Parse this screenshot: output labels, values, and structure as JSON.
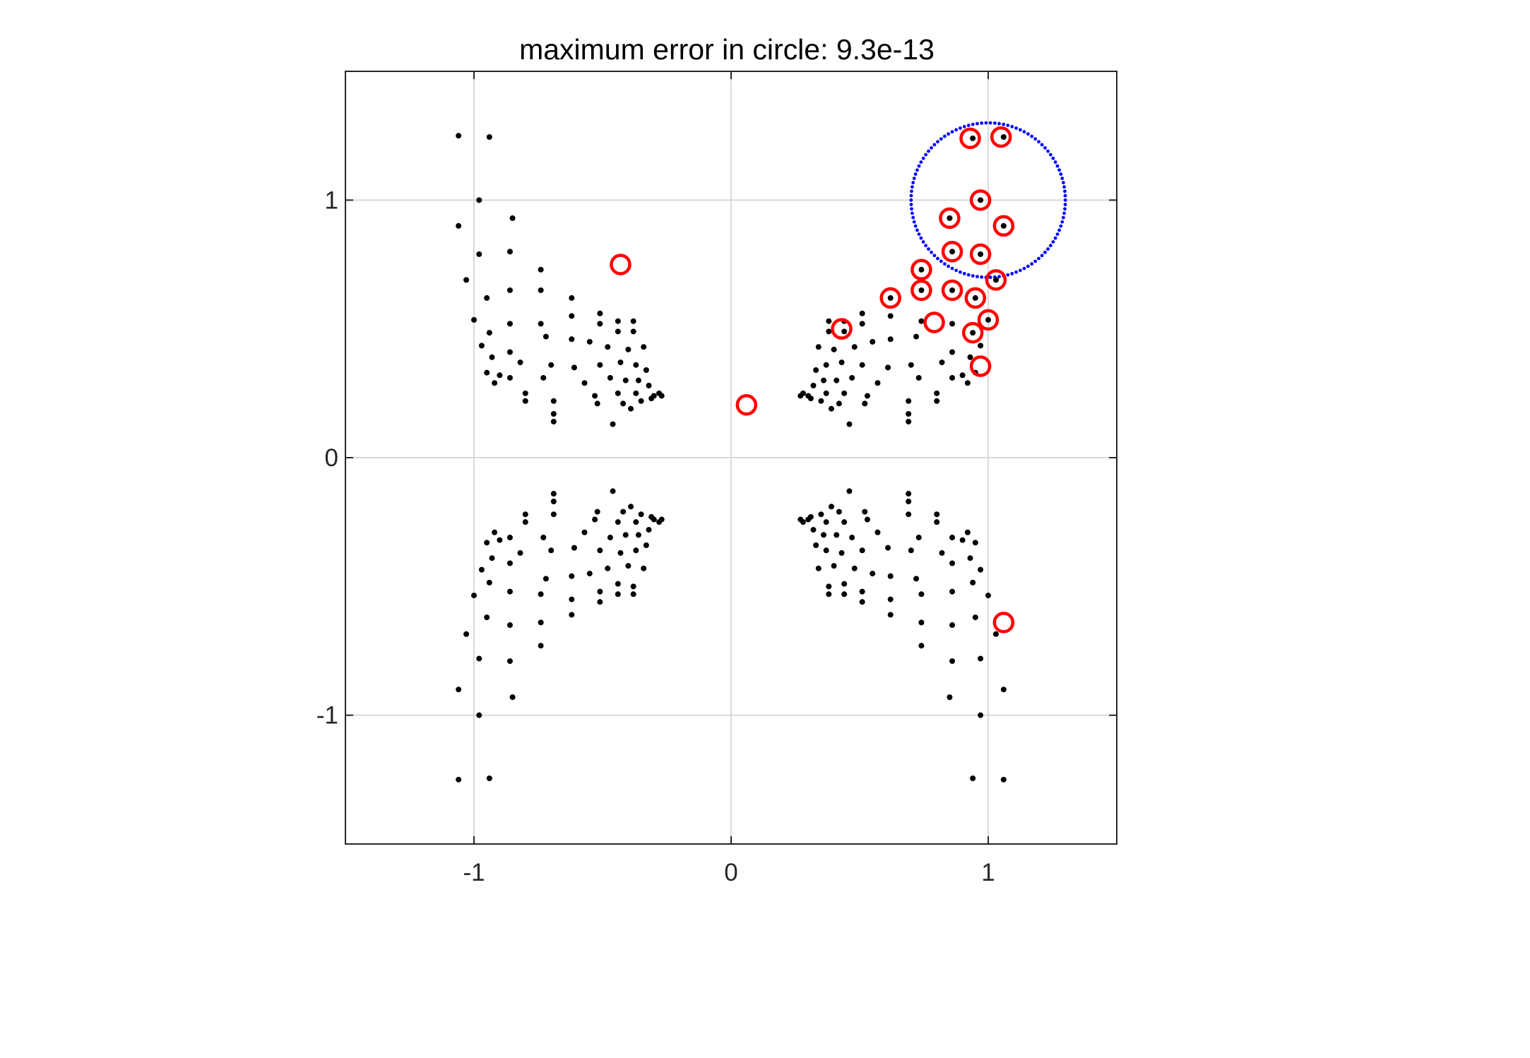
{
  "chart_data": {
    "type": "scatter",
    "title": "maximum error in circle: 9.3e-13",
    "xlabel": "",
    "ylabel": "",
    "xlim": [
      -1.5,
      1.5
    ],
    "ylim": [
      -1.5,
      1.5
    ],
    "grid": true,
    "legend": "none",
    "x_ticks": [
      {
        "value": -1,
        "label": "-1"
      },
      {
        "value": 0,
        "label": "0"
      },
      {
        "value": 1,
        "label": "1"
      }
    ],
    "y_ticks": [
      {
        "value": 1,
        "label": "1"
      },
      {
        "value": 0,
        "label": "0"
      },
      {
        "value": -1,
        "label": "-1"
      }
    ],
    "colors": {
      "points": "#000000",
      "highlighted": "#ff0000",
      "circle": "#0000ff",
      "grid": "#d9d9d9",
      "axes": "#262626"
    },
    "circle": {
      "center": [
        1.0,
        1.0
      ],
      "radius": 0.3
    },
    "highlighted_points": [
      [
        0.93,
        1.24
      ],
      [
        1.05,
        1.245
      ],
      [
        0.97,
        1.0
      ],
      [
        0.85,
        0.93
      ],
      [
        1.06,
        0.9
      ],
      [
        0.86,
        0.8
      ],
      [
        0.97,
        0.79
      ],
      [
        0.74,
        0.73
      ],
      [
        1.03,
        0.69
      ],
      [
        0.74,
        0.65
      ],
      [
        0.86,
        0.65
      ],
      [
        0.95,
        0.62
      ],
      [
        0.62,
        0.62
      ],
      [
        0.79,
        0.525
      ],
      [
        1.0,
        0.535
      ],
      [
        0.94,
        0.485
      ],
      [
        0.43,
        0.5
      ],
      [
        0.97,
        0.355
      ],
      [
        -0.43,
        0.75
      ],
      [
        0.06,
        0.205
      ],
      [
        1.06,
        -0.64
      ]
    ],
    "points_upper_left": [
      [
        -1.06,
        1.25
      ],
      [
        -0.94,
        1.245
      ],
      [
        -0.98,
        1.0
      ],
      [
        -1.06,
        0.9
      ],
      [
        -0.85,
        0.93
      ],
      [
        -0.98,
        0.79
      ],
      [
        -0.86,
        0.8
      ],
      [
        -1.03,
        0.69
      ],
      [
        -0.74,
        0.73
      ],
      [
        -0.86,
        0.65
      ],
      [
        -0.74,
        0.65
      ],
      [
        -0.95,
        0.62
      ],
      [
        -0.62,
        0.62
      ],
      [
        -1.0,
        0.535
      ],
      [
        -0.86,
        0.52
      ],
      [
        -0.74,
        0.52
      ],
      [
        -0.62,
        0.55
      ],
      [
        -0.51,
        0.56
      ],
      [
        -0.44,
        0.53
      ],
      [
        -0.38,
        0.53
      ],
      [
        -0.94,
        0.485
      ],
      [
        -0.72,
        0.47
      ],
      [
        -0.51,
        0.52
      ],
      [
        -0.44,
        0.49
      ],
      [
        -0.38,
        0.49
      ],
      [
        -0.97,
        0.435
      ],
      [
        -0.86,
        0.41
      ],
      [
        -0.62,
        0.46
      ],
      [
        -0.55,
        0.45
      ],
      [
        -0.48,
        0.43
      ],
      [
        -0.4,
        0.42
      ],
      [
        -0.34,
        0.43
      ],
      [
        -0.93,
        0.39
      ],
      [
        -0.82,
        0.37
      ],
      [
        -0.7,
        0.36
      ],
      [
        -0.61,
        0.35
      ],
      [
        -0.51,
        0.36
      ],
      [
        -0.43,
        0.37
      ],
      [
        -0.37,
        0.36
      ],
      [
        -0.33,
        0.34
      ],
      [
        -0.95,
        0.33
      ],
      [
        -0.9,
        0.32
      ],
      [
        -0.86,
        0.31
      ],
      [
        -0.73,
        0.31
      ],
      [
        -0.57,
        0.29
      ],
      [
        -0.47,
        0.31
      ],
      [
        -0.41,
        0.3
      ],
      [
        -0.36,
        0.3
      ],
      [
        -0.32,
        0.28
      ],
      [
        -0.92,
        0.29
      ],
      [
        -0.8,
        0.25
      ],
      [
        -0.69,
        0.22
      ],
      [
        -0.53,
        0.24
      ],
      [
        -0.44,
        0.25
      ],
      [
        -0.37,
        0.25
      ],
      [
        -0.3,
        0.24
      ],
      [
        -0.27,
        0.24
      ],
      [
        -0.8,
        0.22
      ],
      [
        -0.69,
        0.17
      ],
      [
        -0.52,
        0.21
      ],
      [
        -0.42,
        0.21
      ],
      [
        -0.35,
        0.22
      ],
      [
        -0.31,
        0.23
      ],
      [
        -0.69,
        0.14
      ],
      [
        -0.46,
        0.13
      ],
      [
        -0.39,
        0.19
      ],
      [
        -0.28,
        0.25
      ]
    ],
    "points_upper_right": [
      [
        0.94,
        1.24
      ],
      [
        1.06,
        1.245
      ],
      [
        0.97,
        1.0
      ],
      [
        0.85,
        0.93
      ],
      [
        1.06,
        0.9
      ],
      [
        0.86,
        0.8
      ],
      [
        0.97,
        0.79
      ],
      [
        0.74,
        0.73
      ],
      [
        1.03,
        0.69
      ],
      [
        0.74,
        0.65
      ],
      [
        0.86,
        0.65
      ],
      [
        0.95,
        0.62
      ],
      [
        0.62,
        0.62
      ],
      [
        0.62,
        0.55
      ],
      [
        0.51,
        0.56
      ],
      [
        0.44,
        0.53
      ],
      [
        0.38,
        0.53
      ],
      [
        0.74,
        0.53
      ],
      [
        0.86,
        0.52
      ],
      [
        1.0,
        0.535
      ],
      [
        0.94,
        0.485
      ],
      [
        0.72,
        0.47
      ],
      [
        0.51,
        0.52
      ],
      [
        0.44,
        0.49
      ],
      [
        0.38,
        0.49
      ],
      [
        0.97,
        0.435
      ],
      [
        0.86,
        0.41
      ],
      [
        0.62,
        0.46
      ],
      [
        0.55,
        0.45
      ],
      [
        0.48,
        0.43
      ],
      [
        0.4,
        0.42
      ],
      [
        0.34,
        0.43
      ],
      [
        0.93,
        0.39
      ],
      [
        0.82,
        0.37
      ],
      [
        0.7,
        0.36
      ],
      [
        0.61,
        0.35
      ],
      [
        0.51,
        0.36
      ],
      [
        0.43,
        0.37
      ],
      [
        0.37,
        0.36
      ],
      [
        0.33,
        0.34
      ],
      [
        0.95,
        0.33
      ],
      [
        0.9,
        0.32
      ],
      [
        0.86,
        0.31
      ],
      [
        0.73,
        0.31
      ],
      [
        0.57,
        0.29
      ],
      [
        0.47,
        0.31
      ],
      [
        0.41,
        0.3
      ],
      [
        0.36,
        0.3
      ],
      [
        0.32,
        0.28
      ],
      [
        0.8,
        0.25
      ],
      [
        0.69,
        0.22
      ],
      [
        0.53,
        0.24
      ],
      [
        0.44,
        0.25
      ],
      [
        0.37,
        0.25
      ],
      [
        0.3,
        0.24
      ],
      [
        0.27,
        0.24
      ],
      [
        0.8,
        0.22
      ],
      [
        0.69,
        0.17
      ],
      [
        0.52,
        0.21
      ],
      [
        0.42,
        0.21
      ],
      [
        0.35,
        0.22
      ],
      [
        0.31,
        0.23
      ],
      [
        0.69,
        0.14
      ],
      [
        0.46,
        0.13
      ],
      [
        0.39,
        0.19
      ],
      [
        0.28,
        0.25
      ],
      [
        0.92,
        0.29
      ]
    ],
    "points_lower_left": [
      [
        -1.06,
        -1.25
      ],
      [
        -0.94,
        -1.245
      ],
      [
        -0.98,
        -1.0
      ],
      [
        -1.06,
        -0.9
      ],
      [
        -0.85,
        -0.93
      ],
      [
        -0.98,
        -0.78
      ],
      [
        -0.86,
        -0.79
      ],
      [
        -1.03,
        -0.685
      ],
      [
        -0.74,
        -0.73
      ],
      [
        -0.86,
        -0.65
      ],
      [
        -0.74,
        -0.64
      ],
      [
        -0.95,
        -0.62
      ],
      [
        -0.62,
        -0.61
      ],
      [
        -1.0,
        -0.535
      ],
      [
        -0.86,
        -0.52
      ],
      [
        -0.74,
        -0.53
      ],
      [
        -0.62,
        -0.55
      ],
      [
        -0.51,
        -0.56
      ],
      [
        -0.44,
        -0.53
      ],
      [
        -0.38,
        -0.53
      ],
      [
        -0.94,
        -0.485
      ],
      [
        -0.72,
        -0.47
      ],
      [
        -0.51,
        -0.52
      ],
      [
        -0.44,
        -0.49
      ],
      [
        -0.38,
        -0.5
      ],
      [
        -0.97,
        -0.435
      ],
      [
        -0.86,
        -0.41
      ],
      [
        -0.62,
        -0.46
      ],
      [
        -0.55,
        -0.45
      ],
      [
        -0.48,
        -0.43
      ],
      [
        -0.4,
        -0.42
      ],
      [
        -0.34,
        -0.43
      ],
      [
        -0.93,
        -0.39
      ],
      [
        -0.82,
        -0.37
      ],
      [
        -0.7,
        -0.36
      ],
      [
        -0.61,
        -0.35
      ],
      [
        -0.51,
        -0.36
      ],
      [
        -0.43,
        -0.37
      ],
      [
        -0.37,
        -0.36
      ],
      [
        -0.33,
        -0.34
      ],
      [
        -0.95,
        -0.33
      ],
      [
        -0.9,
        -0.32
      ],
      [
        -0.86,
        -0.31
      ],
      [
        -0.73,
        -0.31
      ],
      [
        -0.57,
        -0.29
      ],
      [
        -0.47,
        -0.31
      ],
      [
        -0.41,
        -0.3
      ],
      [
        -0.36,
        -0.3
      ],
      [
        -0.32,
        -0.28
      ],
      [
        -0.92,
        -0.29
      ],
      [
        -0.8,
        -0.25
      ],
      [
        -0.69,
        -0.22
      ],
      [
        -0.53,
        -0.24
      ],
      [
        -0.44,
        -0.25
      ],
      [
        -0.37,
        -0.25
      ],
      [
        -0.3,
        -0.24
      ],
      [
        -0.27,
        -0.24
      ],
      [
        -0.8,
        -0.22
      ],
      [
        -0.69,
        -0.17
      ],
      [
        -0.52,
        -0.21
      ],
      [
        -0.42,
        -0.21
      ],
      [
        -0.35,
        -0.22
      ],
      [
        -0.31,
        -0.23
      ],
      [
        -0.69,
        -0.14
      ],
      [
        -0.46,
        -0.13
      ],
      [
        -0.39,
        -0.19
      ],
      [
        -0.28,
        -0.25
      ]
    ],
    "points_lower_right": [
      [
        0.94,
        -1.245
      ],
      [
        1.06,
        -1.25
      ],
      [
        0.97,
        -1.0
      ],
      [
        0.85,
        -0.93
      ],
      [
        1.06,
        -0.9
      ],
      [
        0.86,
        -0.79
      ],
      [
        0.97,
        -0.78
      ],
      [
        0.74,
        -0.73
      ],
      [
        1.03,
        -0.685
      ],
      [
        0.74,
        -0.64
      ],
      [
        0.86,
        -0.65
      ],
      [
        0.95,
        -0.62
      ],
      [
        0.62,
        -0.61
      ],
      [
        0.62,
        -0.55
      ],
      [
        0.51,
        -0.56
      ],
      [
        0.44,
        -0.53
      ],
      [
        0.38,
        -0.53
      ],
      [
        0.74,
        -0.53
      ],
      [
        0.86,
        -0.52
      ],
      [
        1.0,
        -0.535
      ],
      [
        0.94,
        -0.485
      ],
      [
        0.72,
        -0.47
      ],
      [
        0.51,
        -0.52
      ],
      [
        0.44,
        -0.49
      ],
      [
        0.38,
        -0.5
      ],
      [
        0.97,
        -0.435
      ],
      [
        0.86,
        -0.41
      ],
      [
        0.62,
        -0.46
      ],
      [
        0.55,
        -0.45
      ],
      [
        0.48,
        -0.43
      ],
      [
        0.4,
        -0.42
      ],
      [
        0.34,
        -0.43
      ],
      [
        0.93,
        -0.39
      ],
      [
        0.82,
        -0.37
      ],
      [
        0.7,
        -0.36
      ],
      [
        0.61,
        -0.35
      ],
      [
        0.51,
        -0.36
      ],
      [
        0.43,
        -0.37
      ],
      [
        0.37,
        -0.36
      ],
      [
        0.33,
        -0.34
      ],
      [
        0.95,
        -0.33
      ],
      [
        0.9,
        -0.32
      ],
      [
        0.86,
        -0.31
      ],
      [
        0.73,
        -0.31
      ],
      [
        0.57,
        -0.29
      ],
      [
        0.47,
        -0.31
      ],
      [
        0.41,
        -0.3
      ],
      [
        0.36,
        -0.3
      ],
      [
        0.32,
        -0.28
      ],
      [
        0.8,
        -0.25
      ],
      [
        0.69,
        -0.22
      ],
      [
        0.53,
        -0.24
      ],
      [
        0.44,
        -0.25
      ],
      [
        0.37,
        -0.25
      ],
      [
        0.3,
        -0.24
      ],
      [
        0.27,
        -0.24
      ],
      [
        0.8,
        -0.22
      ],
      [
        0.69,
        -0.17
      ],
      [
        0.52,
        -0.21
      ],
      [
        0.42,
        -0.21
      ],
      [
        0.35,
        -0.22
      ],
      [
        0.31,
        -0.23
      ],
      [
        0.69,
        -0.14
      ],
      [
        0.46,
        -0.13
      ],
      [
        0.39,
        -0.19
      ],
      [
        0.28,
        -0.25
      ],
      [
        0.92,
        -0.29
      ]
    ]
  }
}
